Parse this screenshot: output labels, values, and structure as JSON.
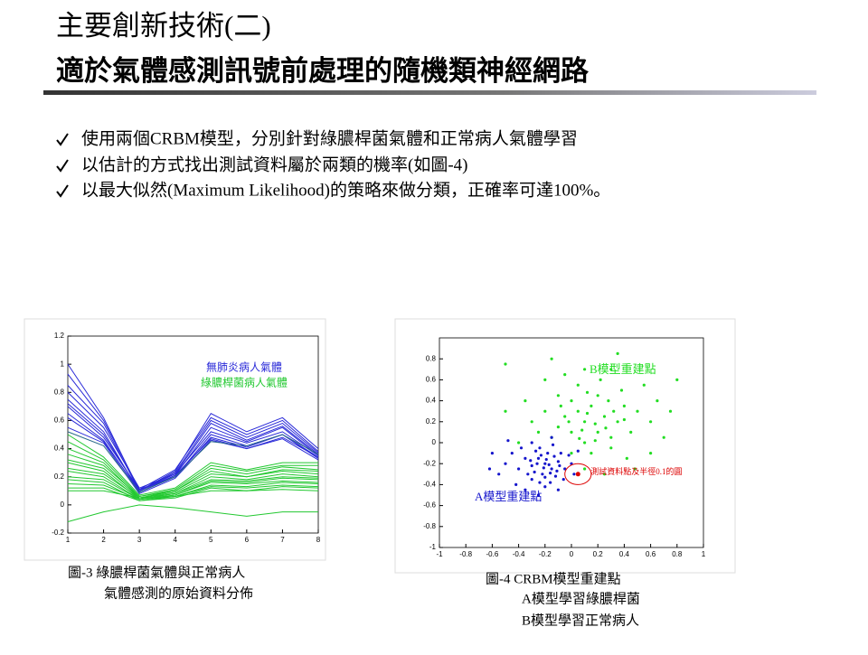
{
  "slide": {
    "title": [
      "主要創新技術(二)",
      "適於氣體感測訊號前處理的隨機類神經網路"
    ],
    "bullets": [
      "使用兩個CRBM模型，分別針對綠膿桿菌氣體和正常病人氣體學習",
      "以估計的方式找出測試資料屬於兩類的機率(如圖-4)",
      "以最大似然(Maximum Likelihood)的策略來做分類，正確率可達100%。"
    ]
  },
  "chart_data": [
    {
      "type": "line",
      "caption": [
        "圖-3 綠膿桿菌氣體與正常病人",
        "氣體感測的原始資料分佈"
      ],
      "x": [
        1,
        2,
        3,
        4,
        5,
        6,
        7,
        8
      ],
      "xlim": [
        1,
        8
      ],
      "xticks": [
        1,
        2,
        3,
        4,
        5,
        6,
        7,
        8
      ],
      "ylim": [
        -0.2,
        1.2
      ],
      "yticks": [
        -0.2,
        0,
        0.2,
        0.4,
        0.6,
        0.8,
        1,
        1.2
      ],
      "legend": [
        {
          "label": "無肺炎病人氣體",
          "color": "#2a2ad8"
        },
        {
          "label": "綠膿桿菌病人氣體",
          "color": "#22c830"
        }
      ],
      "series": [
        {
          "color": "#2a2ad8",
          "values": [
            1.0,
            0.62,
            0.1,
            0.24,
            0.65,
            0.52,
            0.62,
            0.4
          ]
        },
        {
          "color": "#2a2ad8",
          "values": [
            0.93,
            0.6,
            0.11,
            0.25,
            0.62,
            0.5,
            0.6,
            0.38
          ]
        },
        {
          "color": "#2a2ad8",
          "values": [
            0.85,
            0.58,
            0.1,
            0.23,
            0.6,
            0.48,
            0.58,
            0.37
          ]
        },
        {
          "color": "#2a2ad8",
          "values": [
            0.8,
            0.55,
            0.12,
            0.22,
            0.58,
            0.46,
            0.56,
            0.36
          ]
        },
        {
          "color": "#2a2ad8",
          "values": [
            0.75,
            0.52,
            0.09,
            0.21,
            0.55,
            0.45,
            0.55,
            0.35
          ]
        },
        {
          "color": "#2a2ad8",
          "values": [
            0.72,
            0.5,
            0.1,
            0.22,
            0.52,
            0.44,
            0.52,
            0.35
          ]
        },
        {
          "color": "#2a2ad8",
          "values": [
            0.7,
            0.48,
            0.11,
            0.2,
            0.5,
            0.42,
            0.5,
            0.34
          ]
        },
        {
          "color": "#2a2ad8",
          "values": [
            0.65,
            0.46,
            0.09,
            0.2,
            0.48,
            0.41,
            0.5,
            0.33
          ]
        },
        {
          "color": "#2a2ad8",
          "values": [
            0.62,
            0.45,
            0.1,
            0.21,
            0.47,
            0.4,
            0.48,
            0.34
          ]
        },
        {
          "color": "#2a2ad8",
          "values": [
            0.55,
            0.44,
            0.08,
            0.19,
            0.46,
            0.4,
            0.47,
            0.32
          ]
        },
        {
          "color": "#2a6a8a",
          "values": [
            0.52,
            0.42,
            0.09,
            0.2,
            0.45,
            0.42,
            0.5,
            0.36
          ]
        },
        {
          "color": "#22c830",
          "values": [
            0.5,
            0.34,
            0.07,
            0.12,
            0.3,
            0.25,
            0.3,
            0.3
          ]
        },
        {
          "color": "#22c830",
          "values": [
            0.45,
            0.32,
            0.06,
            0.11,
            0.28,
            0.24,
            0.28,
            0.28
          ]
        },
        {
          "color": "#22c830",
          "values": [
            0.4,
            0.3,
            0.05,
            0.1,
            0.26,
            0.22,
            0.27,
            0.25
          ]
        },
        {
          "color": "#22c830",
          "values": [
            0.36,
            0.28,
            0.06,
            0.1,
            0.24,
            0.2,
            0.25,
            0.24
          ]
        },
        {
          "color": "#22c830",
          "values": [
            0.32,
            0.26,
            0.05,
            0.09,
            0.22,
            0.2,
            0.24,
            0.22
          ]
        },
        {
          "color": "#22c830",
          "values": [
            0.3,
            0.24,
            0.04,
            0.08,
            0.2,
            0.18,
            0.22,
            0.2
          ]
        },
        {
          "color": "#22c830",
          "values": [
            0.26,
            0.22,
            0.05,
            0.08,
            0.18,
            0.17,
            0.2,
            0.19
          ]
        },
        {
          "color": "#22c830",
          "values": [
            0.24,
            0.2,
            0.04,
            0.07,
            0.17,
            0.16,
            0.19,
            0.18
          ]
        },
        {
          "color": "#22c830",
          "values": [
            0.2,
            0.18,
            0.04,
            0.07,
            0.16,
            0.15,
            0.17,
            0.16
          ]
        },
        {
          "color": "#22c830",
          "values": [
            0.18,
            0.16,
            0.03,
            0.06,
            0.14,
            0.13,
            0.16,
            0.15
          ]
        },
        {
          "color": "#22c830",
          "values": [
            0.15,
            0.14,
            0.04,
            0.06,
            0.13,
            0.12,
            0.14,
            0.13
          ]
        },
        {
          "color": "#22c830",
          "values": [
            0.12,
            0.12,
            0.03,
            0.05,
            0.12,
            0.1,
            0.13,
            0.12
          ]
        },
        {
          "color": "#22c830",
          "values": [
            0.1,
            0.1,
            0.05,
            0.06,
            0.1,
            0.1,
            0.11,
            0.1
          ]
        },
        {
          "color": "#22c830",
          "values": [
            -0.12,
            -0.05,
            0.0,
            -0.02,
            -0.05,
            -0.08,
            -0.05,
            -0.05
          ]
        }
      ]
    },
    {
      "type": "scatter",
      "caption": [
        "圖-4 CRBM模型重建點",
        "A模型學習綠膿桿菌",
        "B模型學習正常病人"
      ],
      "xlim": [
        -1,
        1
      ],
      "xticks": [
        -1,
        -0.8,
        -0.6,
        -0.4,
        -0.2,
        0,
        0.2,
        0.4,
        0.6,
        0.8,
        1
      ],
      "ylim": [
        -1,
        1
      ],
      "yticks": [
        -1,
        -0.8,
        -0.6,
        -0.4,
        -0.2,
        0,
        0.2,
        0.4,
        0.6,
        0.8
      ],
      "series": [
        {
          "name": "B模型重建點",
          "color": "#22dd22",
          "x": [
            0.0,
            0.1,
            0.05,
            -0.1,
            0.2,
            0.15,
            -0.05,
            0.25,
            0.3,
            0.1,
            -0.15,
            0.0,
            0.2,
            0.35,
            -0.2,
            0.4,
            0.08,
            0.12,
            -0.02,
            0.18,
            0.28,
            0.45,
            -0.25,
            0.5,
            0.22,
            0.05,
            -0.1,
            0.38,
            0.6,
            -0.3,
            0.15,
            0.3,
            0.0,
            0.42,
            -0.35,
            0.55,
            0.65,
            0.1,
            -0.05,
            0.3,
            -0.5,
            0.7,
            0.25,
            0.1,
            0.48,
            -0.4,
            0.6,
            0.75,
            -0.2,
            0.35,
            -0.5,
            0.8,
            -0.15,
            0.12,
            0.26,
            0.06,
            0.32,
            -0.08,
            0.18,
            0.4
          ],
          "values": [
            0.1,
            0.2,
            0.3,
            0.15,
            0.1,
            0.35,
            0.25,
            0.25,
            0.05,
            0.0,
            0.05,
            0.4,
            0.45,
            0.2,
            0.3,
            0.35,
            0.12,
            0.28,
            0.2,
            0.18,
            0.4,
            0.1,
            0.1,
            0.3,
            0.6,
            0.55,
            0.45,
            0.5,
            0.2,
            0.2,
            -0.1,
            -0.05,
            -0.1,
            -0.15,
            0.4,
            0.55,
            0.4,
            0.7,
            0.65,
            0.7,
            0.3,
            0.05,
            -0.3,
            -0.25,
            -0.25,
            0.0,
            -0.1,
            0.3,
            0.6,
            0.85,
            0.75,
            0.6,
            0.8,
            0.48,
            0.14,
            0.04,
            0.3,
            0.35,
            0.02,
            0.22
          ]
        },
        {
          "name": "A模型重建點",
          "color": "#1515cc",
          "x": [
            -0.2,
            -0.25,
            -0.15,
            -0.3,
            -0.1,
            -0.22,
            -0.18,
            -0.28,
            -0.12,
            -0.35,
            -0.05,
            -0.24,
            -0.16,
            -0.4,
            -0.08,
            -0.3,
            -0.2,
            -0.45,
            0.0,
            -0.14,
            -0.26,
            -0.19,
            -0.21,
            -0.17,
            -0.23,
            -0.11,
            -0.33,
            -0.06,
            -0.38,
            -0.02,
            -0.5,
            -0.55,
            -0.42,
            -0.25,
            -0.1,
            0.02,
            -0.3,
            -0.15,
            -0.35,
            -0.6,
            -0.48,
            -0.62,
            0.05,
            -0.27,
            -0.13,
            -0.09,
            -0.31,
            -0.2,
            -0.24,
            -0.16
          ],
          "values": [
            -0.2,
            -0.15,
            -0.25,
            -0.22,
            -0.18,
            -0.3,
            -0.1,
            -0.28,
            -0.32,
            -0.15,
            -0.25,
            -0.05,
            -0.38,
            -0.25,
            -0.1,
            -0.35,
            -0.42,
            -0.1,
            -0.2,
            -0.02,
            -0.2,
            -0.16,
            -0.24,
            -0.21,
            -0.12,
            -0.27,
            -0.3,
            -0.35,
            -0.05,
            -0.12,
            -0.2,
            -0.3,
            -0.4,
            -0.5,
            -0.45,
            -0.3,
            0.0,
            0.05,
            -0.45,
            -0.1,
            0.02,
            -0.25,
            -0.08,
            -0.08,
            -0.13,
            -0.22,
            -0.17,
            -0.33,
            -0.38,
            -0.29
          ]
        }
      ],
      "test_point": {
        "x": 0.05,
        "y": -0.3,
        "radius": 0.1,
        "color": "#dd0000",
        "label": "測試資料點及半徑0.1的圓"
      }
    }
  ]
}
